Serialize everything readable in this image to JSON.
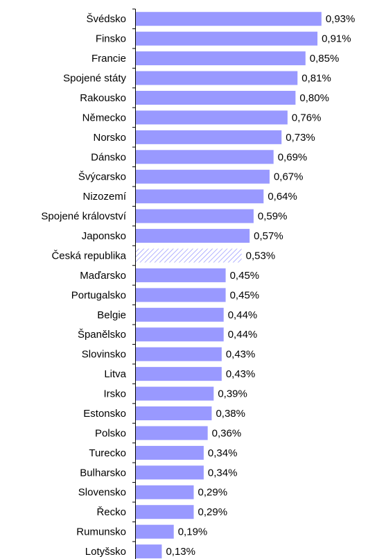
{
  "chart_data": {
    "type": "barh",
    "categories": [
      "Švédsko",
      "Finsko",
      "Francie",
      "Spojené státy",
      "Rakousko",
      "Německo",
      "Norsko",
      "Dánsko",
      "Švýcarsko",
      "Nizozemí",
      "Spojené království",
      "Japonsko",
      "Česká republika",
      "Maďarsko",
      "Portugalsko",
      "Belgie",
      "Španělsko",
      "Slovinsko",
      "Litva",
      "Irsko",
      "Estonsko",
      "Polsko",
      "Turecko",
      "Bulharsko",
      "Slovensko",
      "Řecko",
      "Rumunsko",
      "Lotyšsko"
    ],
    "values": [
      0.93,
      0.91,
      0.85,
      0.81,
      0.8,
      0.76,
      0.73,
      0.69,
      0.67,
      0.64,
      0.59,
      0.57,
      0.53,
      0.45,
      0.45,
      0.44,
      0.44,
      0.43,
      0.43,
      0.39,
      0.38,
      0.36,
      0.34,
      0.34,
      0.29,
      0.29,
      0.19,
      0.13
    ],
    "value_labels": [
      "0,93%",
      "0,91%",
      "0,85%",
      "0,81%",
      "0,80%",
      "0,76%",
      "0,73%",
      "0,69%",
      "0,67%",
      "0,64%",
      "0,59%",
      "0,57%",
      "0,53%",
      "0,45%",
      "0,45%",
      "0,44%",
      "0,44%",
      "0,43%",
      "0,43%",
      "0,39%",
      "0,38%",
      "0,36%",
      "0,34%",
      "0,34%",
      "0,29%",
      "0,29%",
      "0,19%",
      "0,13%"
    ],
    "color": "#9999ff",
    "hatched_index": 12
  }
}
